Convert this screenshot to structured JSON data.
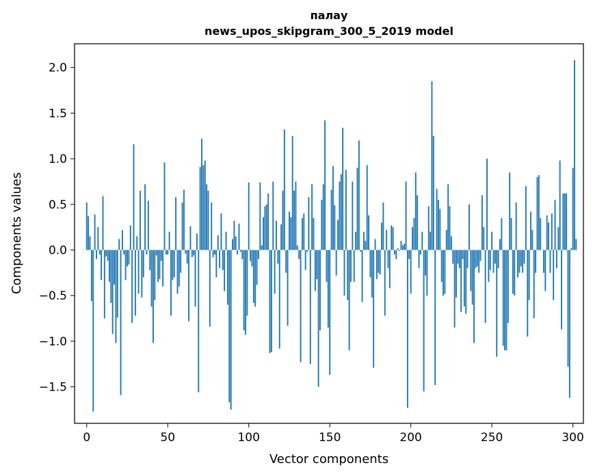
{
  "chart_data": {
    "type": "bar",
    "title": "палау",
    "subtitle": "news_upos_skipgram_300_5_2019 model",
    "xlabel": "Vector components",
    "ylabel": "Components values",
    "xlim": [
      -7.5,
      306.5
    ],
    "ylim": [
      -1.9,
      2.26
    ],
    "xticks": [
      0,
      50,
      100,
      150,
      200,
      250,
      300
    ],
    "yticks": [
      -1.5,
      -1.0,
      -0.5,
      0.0,
      0.5,
      1.0,
      1.5,
      2.0
    ],
    "ytick_labels": [
      "−1.5",
      "−1.0",
      "−0.5",
      "0.0",
      "0.5",
      "1.0",
      "1.5",
      "2.0"
    ],
    "grid": false,
    "bar_color": "#1f77b4",
    "values": [
      0.52,
      0.37,
      0.15,
      -0.56,
      -1.77,
      0.39,
      -0.1,
      0.25,
      -0.05,
      -0.33,
      0.59,
      -0.75,
      -0.07,
      -0.12,
      -0.35,
      -0.58,
      -0.92,
      -0.38,
      -1.02,
      -0.74,
      0.12,
      -1.59,
      0.22,
      -0.05,
      -0.33,
      -0.18,
      -0.16,
      0.27,
      -0.8,
      1.16,
      -0.72,
      0.15,
      -0.48,
      0.65,
      -0.52,
      -0.3,
      0.72,
      -0.05,
      0.54,
      -0.22,
      -0.62,
      -1.02,
      -0.55,
      -0.06,
      -0.35,
      -0.32,
      -0.12,
      -0.4,
      0.96,
      -0.05,
      -0.05,
      0.2,
      -0.72,
      -0.33,
      -0.3,
      0.58,
      -0.48,
      -0.4,
      -0.25,
      0.52,
      0.66,
      -0.04,
      -0.15,
      -0.78,
      0.26,
      -0.08,
      -0.06,
      -0.62,
      0.18,
      -1.56,
      0.91,
      1.22,
      0.93,
      0.98,
      0.72,
      0.65,
      -0.84,
      0.52,
      -0.08,
      -0.05,
      -0.3,
      0.16,
      -0.2,
      0.4,
      -0.22,
      -0.45,
      0.2,
      -0.6,
      -1.67,
      -1.75,
      0.12,
      0.32,
      0.15,
      -0.05,
      0.29,
      -0.02,
      -0.1,
      -0.88,
      -0.93,
      -0.72,
      0.74,
      -0.12,
      -0.18,
      -0.58,
      -0.62,
      -0.38,
      -0.1,
      0.74,
      0.05,
      0.36,
      0.48,
      0.5,
      0.62,
      -1.13,
      -1.12,
      0.75,
      -0.48,
      0.32,
      -0.15,
      -1.08,
      0.28,
      0.65,
      1.32,
      -0.25,
      -0.83,
      0.42,
      0.36,
      1.25,
      0.65,
      0.75,
      0.05,
      -0.1,
      -1.23,
      0.35,
      0.4,
      -0.22,
      -0.02,
      0.58,
      -1.25,
      0.72,
      0.35,
      -0.45,
      -0.32,
      -1.5,
      -0.88,
      0.55,
      0.72,
      1.42,
      -0.35,
      -0.85,
      -1.37,
      0.66,
      0.92,
      0.49,
      -0.28,
      0.33,
      0.75,
      0.83,
      1.34,
      -0.5,
      0.88,
      -0.55,
      -1.1,
      -0.35,
      0.75,
      -0.35,
      0.2,
      0.9,
      1.2,
      -0.02,
      -0.57,
      0.2,
      0.1,
      0.93,
      0.38,
      -0.3,
      -0.52,
      -1.29,
      0.12,
      -0.32,
      -0.25,
      -0.27,
      0.3,
      0.52,
      -0.72,
      0.22,
      -0.2,
      -0.42,
      0.27,
      0.25,
      -0.05,
      -0.1,
      0.02,
      -0.01,
      0.1,
      0.05,
      0.07,
      0.75,
      -1.73,
      -0.1,
      -0.48,
      0.25,
      0.35,
      0.85,
      0.6,
      -0.2,
      -0.05,
      0.2,
      -1.55,
      -0.28,
      -0.5,
      0.48,
      0.2,
      1.85,
      1.25,
      -1.48,
      0.67,
      0.55,
      0.45,
      -0.35,
      -0.5,
      -0.48,
      0.22,
      0.72,
      0.48,
      0.15,
      -0.15,
      -0.85,
      -0.52,
      -0.15,
      -0.2,
      -0.68,
      -0.1,
      -0.62,
      -0.7,
      -0.2,
      0.5,
      -0.45,
      -0.6,
      -1.02,
      -0.2,
      -0.18,
      -0.25,
      -0.12,
      0.6,
      0.25,
      -0.8,
      1.0,
      -0.35,
      -0.22,
      0.2,
      -0.25,
      -0.15,
      -1.17,
      -0.2,
      0.12,
      0.35,
      -1.05,
      -1.1,
      -1.1,
      -0.8,
      0.85,
      0.35,
      -0.48,
      -0.5,
      0.52,
      -0.3,
      -0.25,
      -0.18,
      -0.25,
      -0.15,
      0.7,
      -0.95,
      -0.55,
      0.42,
      0.22,
      -0.75,
      -0.25,
      0.8,
      0.82,
      0.35,
      0.0,
      -0.25,
      -0.45,
      0.38,
      0.3,
      -0.25,
      0.4,
      -0.55,
      0.55,
      -0.2,
      0.25,
      0.98,
      -0.87,
      0.62,
      0.62,
      0.62,
      -1.28,
      -1.62,
      0.02,
      0.9,
      2.08,
      0.12
    ]
  }
}
